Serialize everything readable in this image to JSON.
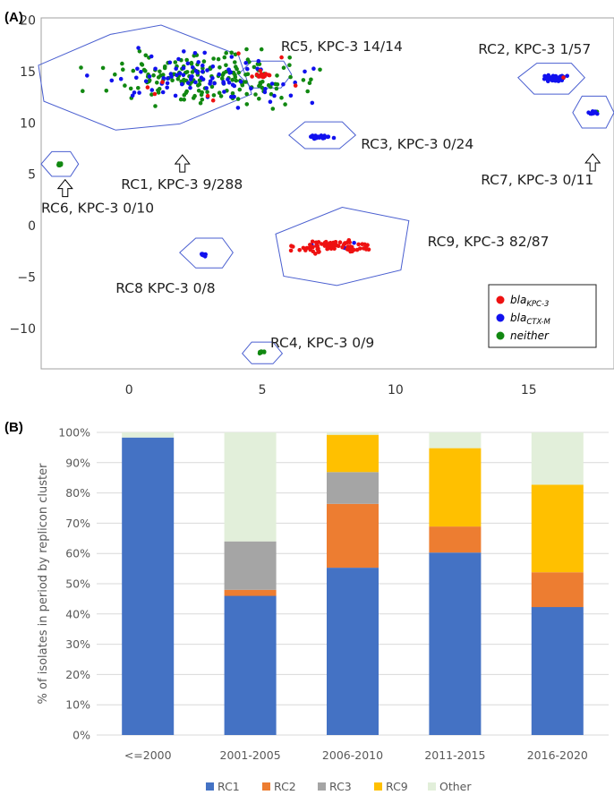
{
  "panel_a_label": "(A)",
  "panel_b_label": "(B)",
  "chart_data": [
    {
      "type": "scatter",
      "xlim": [
        -3.3,
        18.2
      ],
      "ylim": [
        -13.9,
        20.2
      ],
      "x_ticks": [
        0,
        5,
        10,
        15
      ],
      "x_tick_labels": [
        "0",
        "5",
        "10",
        "15"
      ],
      "y_ticks": [
        20,
        15,
        10,
        5,
        0,
        -5,
        -10
      ],
      "y_tick_labels": [
        "20",
        "15",
        "10",
        "5",
        "0",
        "−5",
        "−10"
      ],
      "legend": {
        "position": "bottom-right",
        "entries": [
          {
            "base": "bla",
            "sub": "KPC-3",
            "color": "#ee1111"
          },
          {
            "base": "bla",
            "sub": "CTX-M",
            "color": "#1111ee"
          },
          {
            "base": "neither",
            "sub": "",
            "color": "#118811"
          }
        ]
      },
      "colors": {
        "kpc3": "#ee1111",
        "ctxm": "#1111ee",
        "neither": "#118811",
        "hull": "#4a5fd0"
      },
      "clusters": [
        {
          "id": "RC1",
          "label": "RC1, KPC-3 9/288",
          "center": [
            3.0,
            14.3
          ],
          "spread": [
            3.3,
            2.1
          ],
          "hull": [
            [
              -3.4,
              15.6
            ],
            [
              -0.7,
              18.6
            ],
            [
              1.2,
              19.5
            ],
            [
              4.1,
              16.6
            ],
            [
              4.6,
              12.8
            ],
            [
              1.9,
              9.9
            ],
            [
              -0.5,
              9.3
            ],
            [
              -3.2,
              12.1
            ]
          ],
          "n_kpc": 9,
          "n_ctx": 95,
          "n_neither": 184,
          "label_pos": [
            -0.3,
            3.6
          ],
          "arrow_from": [
            2.0,
            6.1
          ]
        },
        {
          "id": "RC2",
          "label": "RC2, KPC-3 1/57",
          "center": [
            15.9,
            14.3
          ],
          "spread": [
            0.4,
            0.3
          ],
          "hull": [
            [
              14.6,
              14.4
            ],
            [
              15.3,
              15.8
            ],
            [
              16.6,
              15.8
            ],
            [
              17.1,
              14.4
            ],
            [
              16.5,
              12.8
            ],
            [
              15.2,
              12.8
            ]
          ],
          "n_kpc": 1,
          "n_ctx": 56,
          "n_neither": 0,
          "label_pos": [
            13.1,
            16.7
          ],
          "arrow_from": null
        },
        {
          "id": "RC3",
          "label": "RC3, KPC-3 0/24",
          "center": [
            7.2,
            8.6
          ],
          "spread": [
            0.35,
            0.2
          ],
          "hull": [
            [
              6.0,
              8.8
            ],
            [
              6.6,
              10.1
            ],
            [
              8.0,
              10.1
            ],
            [
              8.5,
              8.8
            ],
            [
              7.9,
              7.5
            ],
            [
              6.6,
              7.5
            ]
          ],
          "n_kpc": 0,
          "n_ctx": 24,
          "n_neither": 0,
          "label_pos": [
            8.7,
            7.5
          ],
          "arrow_from": null
        },
        {
          "id": "RC4",
          "label": "RC4, KPC-3 0/9",
          "center": [
            5.0,
            -12.3
          ],
          "spread": [
            0.15,
            0.1
          ],
          "hull": [
            [
              4.25,
              -12.4
            ],
            [
              4.6,
              -11.3
            ],
            [
              5.4,
              -11.3
            ],
            [
              5.75,
              -12.4
            ],
            [
              5.4,
              -13.4
            ],
            [
              4.6,
              -13.4
            ]
          ],
          "n_kpc": 0,
          "n_ctx": 0,
          "n_neither": 9,
          "label_pos": [
            5.3,
            -11.8
          ],
          "arrow_from": null
        },
        {
          "id": "RC5",
          "label": "RC5, KPC-3 14/14",
          "center": [
            5.0,
            14.6
          ],
          "spread": [
            0.3,
            0.15
          ],
          "hull": [
            [
              4.1,
              14.7
            ],
            [
              4.6,
              16.0
            ],
            [
              5.8,
              16.0
            ],
            [
              6.1,
              14.7
            ],
            [
              5.7,
              13.4
            ],
            [
              4.6,
              13.4
            ]
          ],
          "n_kpc": 14,
          "n_ctx": 0,
          "n_neither": 0,
          "label_pos": [
            5.7,
            17.0
          ],
          "arrow_from": null
        },
        {
          "id": "RC6",
          "label": "RC6, KPC-3 0/10",
          "center": [
            -2.6,
            6.0
          ],
          "spread": [
            0.12,
            0.15
          ],
          "hull": [
            [
              -3.3,
              6.0
            ],
            [
              -2.9,
              7.2
            ],
            [
              -2.2,
              7.2
            ],
            [
              -1.9,
              6.0
            ],
            [
              -2.2,
              4.8
            ],
            [
              -2.9,
              4.8
            ]
          ],
          "n_kpc": 0,
          "n_ctx": 0,
          "n_neither": 10,
          "label_pos": [
            -3.3,
            1.3
          ],
          "arrow_from": [
            -2.4,
            3.7
          ]
        },
        {
          "id": "RC7",
          "label": "RC7, KPC-3 0/11",
          "center": [
            17.4,
            11.0
          ],
          "spread": [
            0.2,
            0.15
          ],
          "hull": [
            [
              16.65,
              11.0
            ],
            [
              17.0,
              12.6
            ],
            [
              17.9,
              12.6
            ],
            [
              18.2,
              11.0
            ],
            [
              17.9,
              9.5
            ],
            [
              17.0,
              9.5
            ]
          ],
          "n_kpc": 0,
          "n_ctx": 10,
          "n_neither": 1,
          "label_pos": [
            13.2,
            4.0
          ],
          "arrow_from": [
            17.4,
            6.2
          ]
        },
        {
          "id": "RC8",
          "label": "RC8 KPC-3 0/8",
          "center": [
            2.8,
            -2.8
          ],
          "spread": [
            0.12,
            0.15
          ],
          "hull": [
            [
              1.9,
              -2.6
            ],
            [
              2.5,
              -1.2
            ],
            [
              3.5,
              -1.2
            ],
            [
              3.9,
              -2.6
            ],
            [
              3.5,
              -4.1
            ],
            [
              2.5,
              -4.1
            ]
          ],
          "n_kpc": 0,
          "n_ctx": 8,
          "n_neither": 0,
          "label_pos": [
            -0.5,
            -6.5
          ],
          "arrow_from": null
        },
        {
          "id": "RC9",
          "label": "RC9, KPC-3 82/87",
          "center": [
            7.6,
            -2.0
          ],
          "spread": [
            1.1,
            0.55
          ],
          "hull": [
            [
              5.5,
              -0.8
            ],
            [
              8.0,
              1.8
            ],
            [
              10.5,
              0.5
            ],
            [
              10.2,
              -4.3
            ],
            [
              7.8,
              -5.8
            ],
            [
              5.8,
              -4.9
            ]
          ],
          "n_kpc": 82,
          "n_ctx": 5,
          "n_neither": 0,
          "label_pos": [
            11.2,
            -2.0
          ],
          "arrow_from": null
        }
      ]
    },
    {
      "type": "bar",
      "stacked": true,
      "categories": [
        "<=2000",
        "2001-2005",
        "2006-2010",
        "2011-2015",
        "2016-2020"
      ],
      "ylabel": "% of isolates in period by replicon cluster",
      "ylim": [
        0,
        100
      ],
      "y_ticks": [
        0,
        10,
        20,
        30,
        40,
        50,
        60,
        70,
        80,
        90,
        100
      ],
      "y_tick_labels": [
        "0%",
        "10%",
        "20%",
        "30%",
        "40%",
        "50%",
        "60%",
        "70%",
        "80%",
        "90%",
        "100%"
      ],
      "legend_position": "bottom",
      "series": [
        {
          "name": "RC1",
          "color": "#4472c4",
          "values": [
            98.3,
            46.0,
            55.3,
            60.3,
            42.3
          ]
        },
        {
          "name": "RC2",
          "color": "#ed7d31",
          "values": [
            0,
            2.0,
            21.1,
            8.6,
            11.5
          ]
        },
        {
          "name": "RC3",
          "color": "#a5a5a5",
          "values": [
            0,
            16.0,
            10.5,
            0,
            0
          ]
        },
        {
          "name": "RC9",
          "color": "#ffc000",
          "values": [
            0,
            0,
            12.3,
            25.9,
            28.9
          ]
        },
        {
          "name": "Other",
          "color": "#e2efda",
          "values": [
            1.7,
            36.0,
            0.8,
            5.2,
            17.3
          ]
        }
      ]
    }
  ]
}
